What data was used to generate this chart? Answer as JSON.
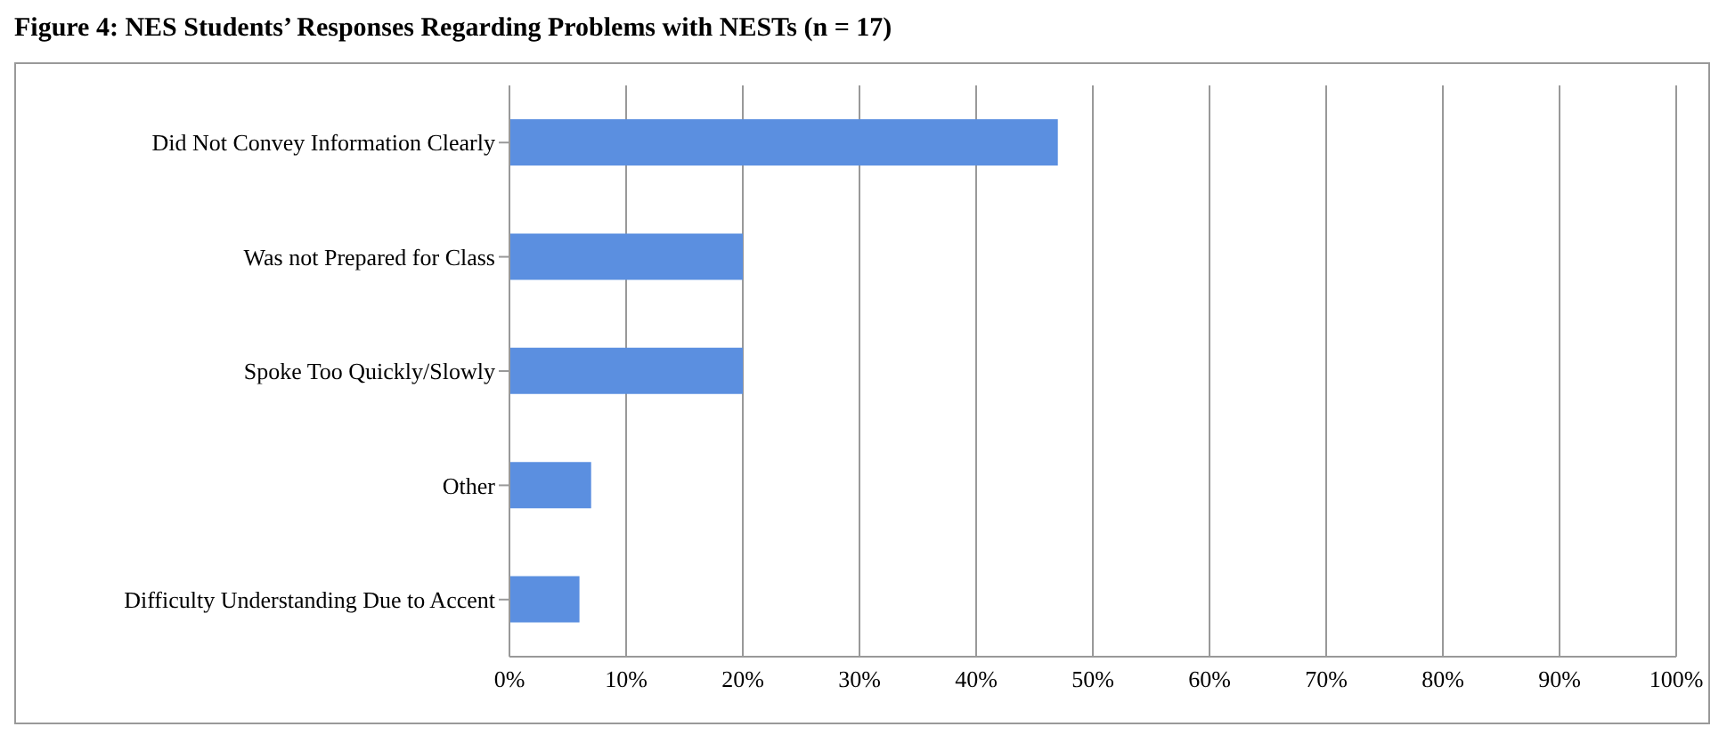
{
  "chart_data": {
    "type": "bar",
    "orientation": "horizontal",
    "title": "Figure 4: NES Students’ Responses Regarding Problems with NESTs (n = 17)",
    "categories": [
      "Did Not Convey Information Clearly",
      "Was not Prepared for Class",
      "Spoke Too Quickly/Slowly",
      "Other",
      "Difficulty Understanding Due to Accent"
    ],
    "values": [
      47,
      20,
      20,
      7,
      6
    ],
    "color": "#5b8fe0",
    "xlim": [
      0,
      100
    ],
    "xticks": [
      {
        "value": 0,
        "label": "0%"
      },
      {
        "value": 10,
        "label": "10%"
      },
      {
        "value": 20,
        "label": "20%"
      },
      {
        "value": 30,
        "label": "30%"
      },
      {
        "value": 40,
        "label": "40%"
      },
      {
        "value": 50,
        "label": "50%"
      },
      {
        "value": 60,
        "label": "60%"
      },
      {
        "value": 70,
        "label": "70%"
      },
      {
        "value": 80,
        "label": "80%"
      },
      {
        "value": 90,
        "label": "90%"
      },
      {
        "value": 100,
        "label": "100%"
      }
    ],
    "grid": "x"
  }
}
